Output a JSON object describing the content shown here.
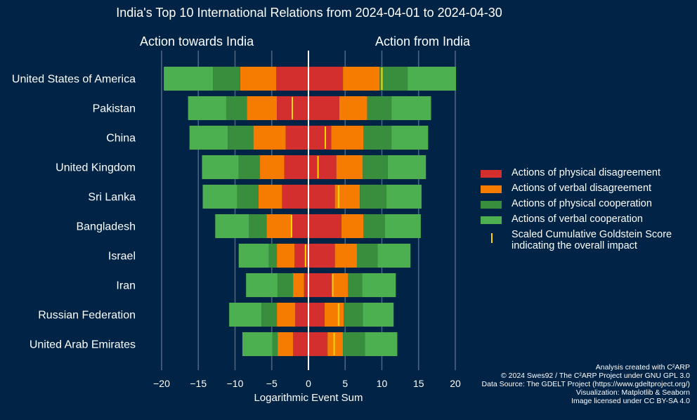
{
  "title": "India's Top 10 International Relations from 2024-04-01 to 2024-04-30",
  "subtitle_left": "Action towards India",
  "subtitle_right": "Action from India",
  "colors": {
    "background": "#012345",
    "physical_disagreement": "#D32F2F",
    "verbal_disagreement": "#F57C00",
    "physical_cooperation": "#388E3C",
    "verbal_cooperation": "#4CAF50",
    "goldstein": "#FFD700"
  },
  "legend": [
    {
      "label": "Actions of physical disagreement",
      "color_key": "physical_disagreement"
    },
    {
      "label": "Actions of verbal disagreement",
      "color_key": "verbal_disagreement"
    },
    {
      "label": "Actions of physical cooperation",
      "color_key": "physical_cooperation"
    },
    {
      "label": "Actions of verbal cooperation",
      "color_key": "verbal_cooperation"
    },
    {
      "label": "Scaled Cumulative Goldstein Score\nindicating the overall impact",
      "color_key": "goldstein"
    }
  ],
  "credits": [
    "Analysis created with C²ARP",
    "© 2024 Swes92 / The C²ARP Project under GNU GPL 3.0",
    "Data Source: The GDELT Project (https://www.gdeltproject.org/)",
    "Visualization: Matplotlib & Seaborn",
    "Image licensed under CC BY-SA 4.0"
  ],
  "chart_data": {
    "type": "bar",
    "orientation": "horizontal-stacked-diverging",
    "xlabel": "Logarithmic Event Sum",
    "xlim": [
      -21,
      21
    ],
    "xticks": [
      -20,
      -15,
      -10,
      -5,
      0,
      5,
      10,
      15,
      20
    ],
    "grid": true,
    "legend_position": "right",
    "categories": [
      "United States of America",
      "Pakistan",
      "China",
      "United Kingdom",
      "Sri Lanka",
      "Bangladesh",
      "Israel",
      "Iran",
      "Russian Federation",
      "United Arab Emirates"
    ],
    "towards": {
      "physical_disagreement": [
        4.4,
        4.3,
        3.1,
        3.3,
        3.6,
        2.3,
        1.9,
        0.6,
        1.8,
        2.1
      ],
      "verbal_disagreement": [
        4.9,
        4.1,
        4.4,
        3.3,
        3.2,
        3.4,
        2.4,
        1.5,
        2.5,
        2.1
      ],
      "physical_cooperation": [
        3.7,
        2.8,
        3.5,
        2.9,
        2.9,
        2.4,
        1.1,
        2.1,
        2.1,
        0.7
      ],
      "verbal_cooperation": [
        6.7,
        5.2,
        5.2,
        5.0,
        4.7,
        4.6,
        4.1,
        4.3,
        4.4,
        4.1
      ]
    },
    "from": {
      "physical_disagreement": [
        4.7,
        4.2,
        3.1,
        3.8,
        3.6,
        4.5,
        3.6,
        3.2,
        2.2,
        2.6
      ],
      "verbal_disagreement": [
        5.0,
        3.8,
        4.4,
        3.6,
        3.4,
        3.0,
        3.0,
        2.2,
        2.6,
        2.1
      ],
      "physical_cooperation": [
        3.8,
        3.3,
        3.8,
        3.4,
        3.6,
        2.9,
        2.8,
        1.9,
        2.6,
        3.0
      ],
      "verbal_cooperation": [
        6.6,
        5.4,
        5.0,
        5.2,
        4.8,
        4.9,
        4.5,
        4.6,
        4.2,
        4.4
      ]
    },
    "goldstein": [
      10.0,
      -2.2,
      2.3,
      1.3,
      4.1,
      -2.3,
      -0.4,
      3.3,
      4.1,
      3.5
    ]
  }
}
